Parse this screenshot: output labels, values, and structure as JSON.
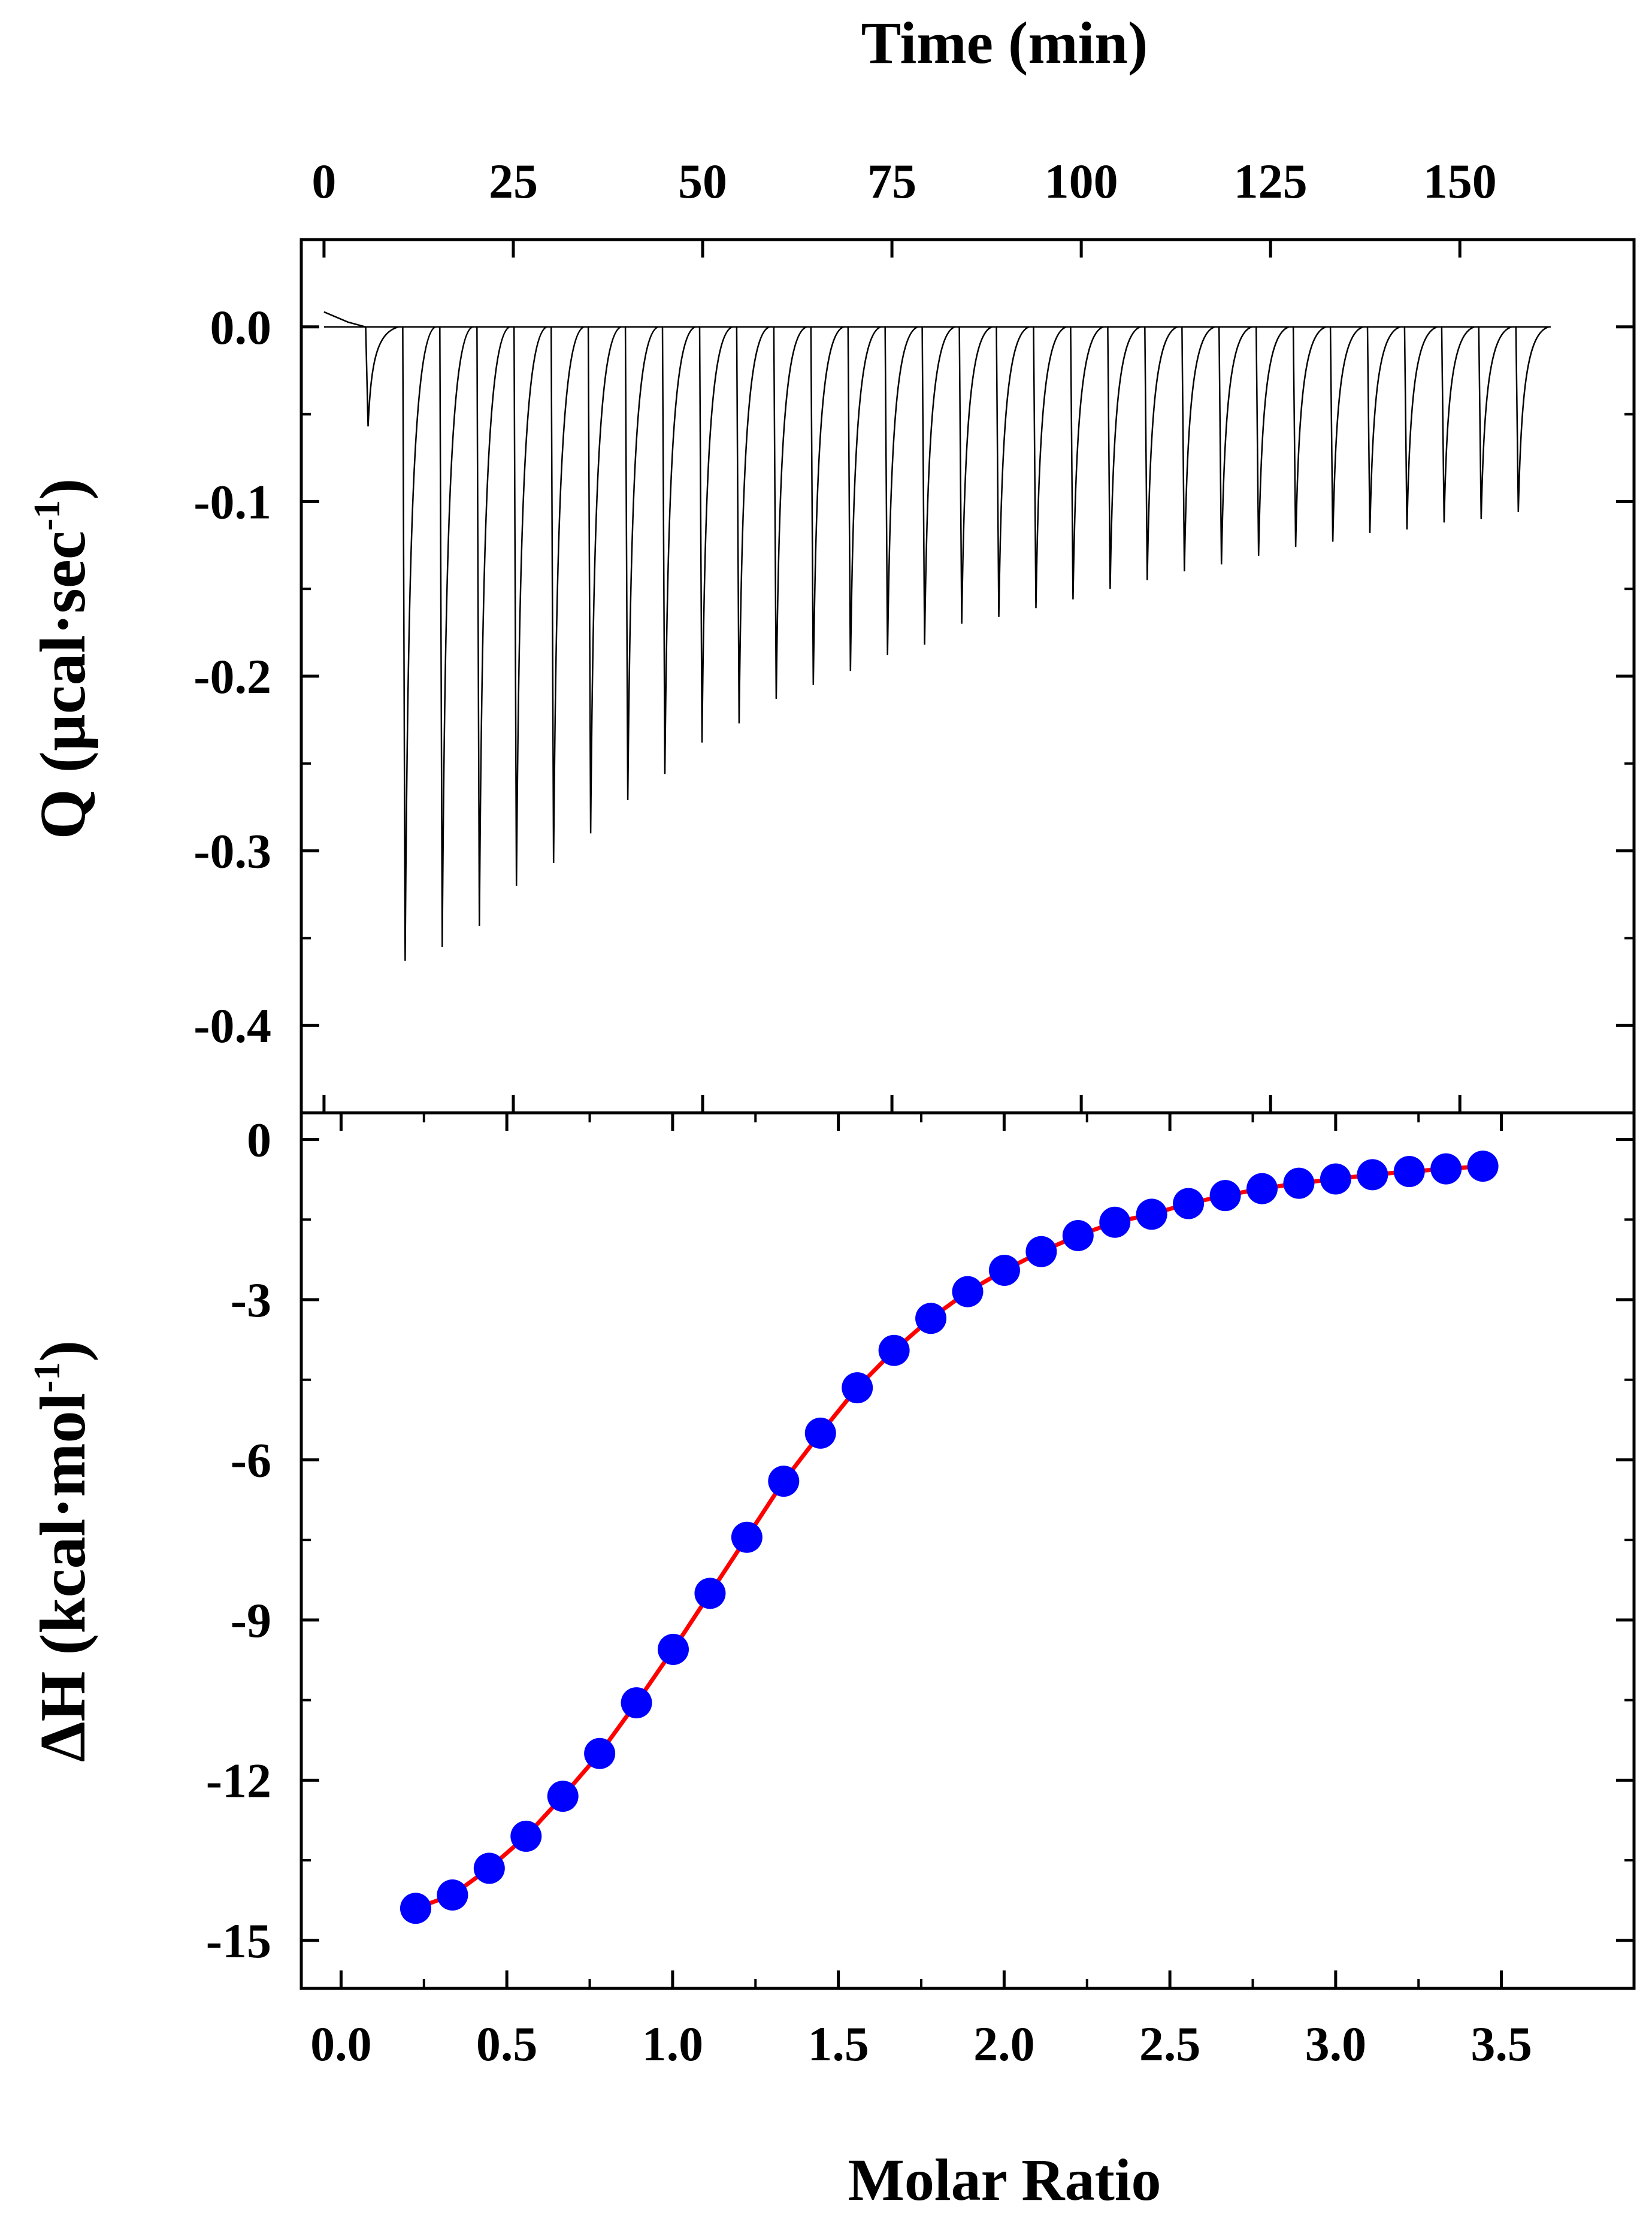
{
  "chart_data": [
    {
      "type": "line",
      "panel": "top",
      "title": "Time (min)",
      "xlabel": "Time (min)",
      "ylabel": {
        "main": "Q  (µcal·sec",
        "sup": "-1",
        "close": ")"
      },
      "xlim": [
        -3,
        173
      ],
      "ylim": [
        -0.45,
        0.05
      ],
      "xticks": [
        0,
        25,
        50,
        75,
        100,
        125,
        150
      ],
      "xtick_labels": [
        "0",
        "25",
        "50",
        "75",
        "100",
        "125",
        "150"
      ],
      "yticks": [
        0.0,
        -0.1,
        -0.2,
        -0.3,
        -0.4
      ],
      "ytick_labels": [
        "0.0",
        "-0.1",
        "-0.2",
        "-0.3",
        "-0.4"
      ],
      "series": [
        {
          "name": "raw heat rate",
          "color": "#000000",
          "injection_times": [
            5.5,
            10.4,
            15.3,
            20.2,
            25.1,
            30.0,
            34.9,
            39.8,
            44.7,
            49.6,
            54.5,
            59.4,
            64.3,
            69.2,
            74.1,
            79.0,
            83.9,
            88.8,
            93.7,
            98.6,
            103.5,
            108.4,
            113.3,
            118.2,
            123.1,
            128.0,
            132.9,
            137.8,
            142.7,
            147.6,
            152.5,
            157.4
          ],
          "peak_minima": [
            -0.057,
            -0.363,
            -0.355,
            -0.343,
            -0.32,
            -0.307,
            -0.29,
            -0.271,
            -0.256,
            -0.238,
            -0.227,
            -0.213,
            -0.205,
            -0.197,
            -0.188,
            -0.182,
            -0.17,
            -0.166,
            -0.161,
            -0.156,
            -0.15,
            -0.145,
            -0.14,
            -0.136,
            -0.131,
            -0.126,
            -0.123,
            -0.118,
            -0.116,
            -0.112,
            -0.11,
            -0.106
          ],
          "baseline": 0.0,
          "end_time": 162
        }
      ]
    },
    {
      "type": "scatter",
      "panel": "bottom",
      "xlabel": "Molar Ratio",
      "ylabel": {
        "main": "ΔH  (kcal·mol",
        "sup": "-1",
        "close": ")"
      },
      "xlim": [
        -0.12,
        3.9
      ],
      "ylim": [
        -15.9,
        0.5
      ],
      "xticks": [
        0.0,
        0.5,
        1.0,
        1.5,
        2.0,
        2.5,
        3.0,
        3.5
      ],
      "xtick_labels": [
        "0.0",
        "0.5",
        "1.0",
        "1.5",
        "2.0",
        "2.5",
        "3.0",
        "3.5"
      ],
      "yticks": [
        0,
        -3,
        -6,
        -9,
        -12,
        -15
      ],
      "ytick_labels": [
        "0",
        "-3",
        "-6",
        "-9",
        "-12",
        "-15"
      ],
      "series": [
        {
          "name": "integrated heats",
          "color": "#0000ff",
          "x": [
            0.225,
            0.336,
            0.447,
            0.558,
            0.669,
            0.78,
            0.891,
            1.002,
            1.113,
            1.224,
            1.335,
            1.446,
            1.557,
            1.668,
            1.779,
            1.89,
            2.001,
            2.112,
            2.223,
            2.334,
            2.445,
            2.556,
            2.667,
            2.778,
            2.889,
            3.0,
            3.111,
            3.222,
            3.333,
            3.444
          ],
          "y": [
            -14.4,
            -14.15,
            -13.65,
            -13.05,
            -12.3,
            -11.5,
            -10.55,
            -9.55,
            -8.5,
            -7.45,
            -6.4,
            -5.5,
            -4.65,
            -3.95,
            -3.35,
            -2.85,
            -2.45,
            -2.1,
            -1.8,
            -1.55,
            -1.4,
            -1.2,
            -1.05,
            -0.92,
            -0.82,
            -0.74,
            -0.66,
            -0.6,
            -0.55,
            -0.5
          ]
        },
        {
          "name": "fit",
          "type": "line",
          "color": "#ff0000",
          "x": [
            0.225,
            0.336,
            0.447,
            0.558,
            0.669,
            0.78,
            0.891,
            1.002,
            1.113,
            1.224,
            1.335,
            1.446,
            1.557,
            1.668,
            1.779,
            1.89,
            2.001,
            2.112,
            2.223,
            2.334,
            2.445,
            2.556,
            2.667,
            2.778,
            2.889,
            3.0,
            3.111,
            3.222,
            3.333,
            3.444
          ],
          "y": [
            -14.4,
            -14.15,
            -13.65,
            -13.05,
            -12.3,
            -11.5,
            -10.55,
            -9.55,
            -8.5,
            -7.45,
            -6.4,
            -5.5,
            -4.65,
            -3.95,
            -3.35,
            -2.85,
            -2.45,
            -2.1,
            -1.8,
            -1.55,
            -1.4,
            -1.2,
            -1.05,
            -0.92,
            -0.82,
            -0.74,
            -0.66,
            -0.6,
            -0.55,
            -0.5
          ]
        }
      ]
    }
  ]
}
